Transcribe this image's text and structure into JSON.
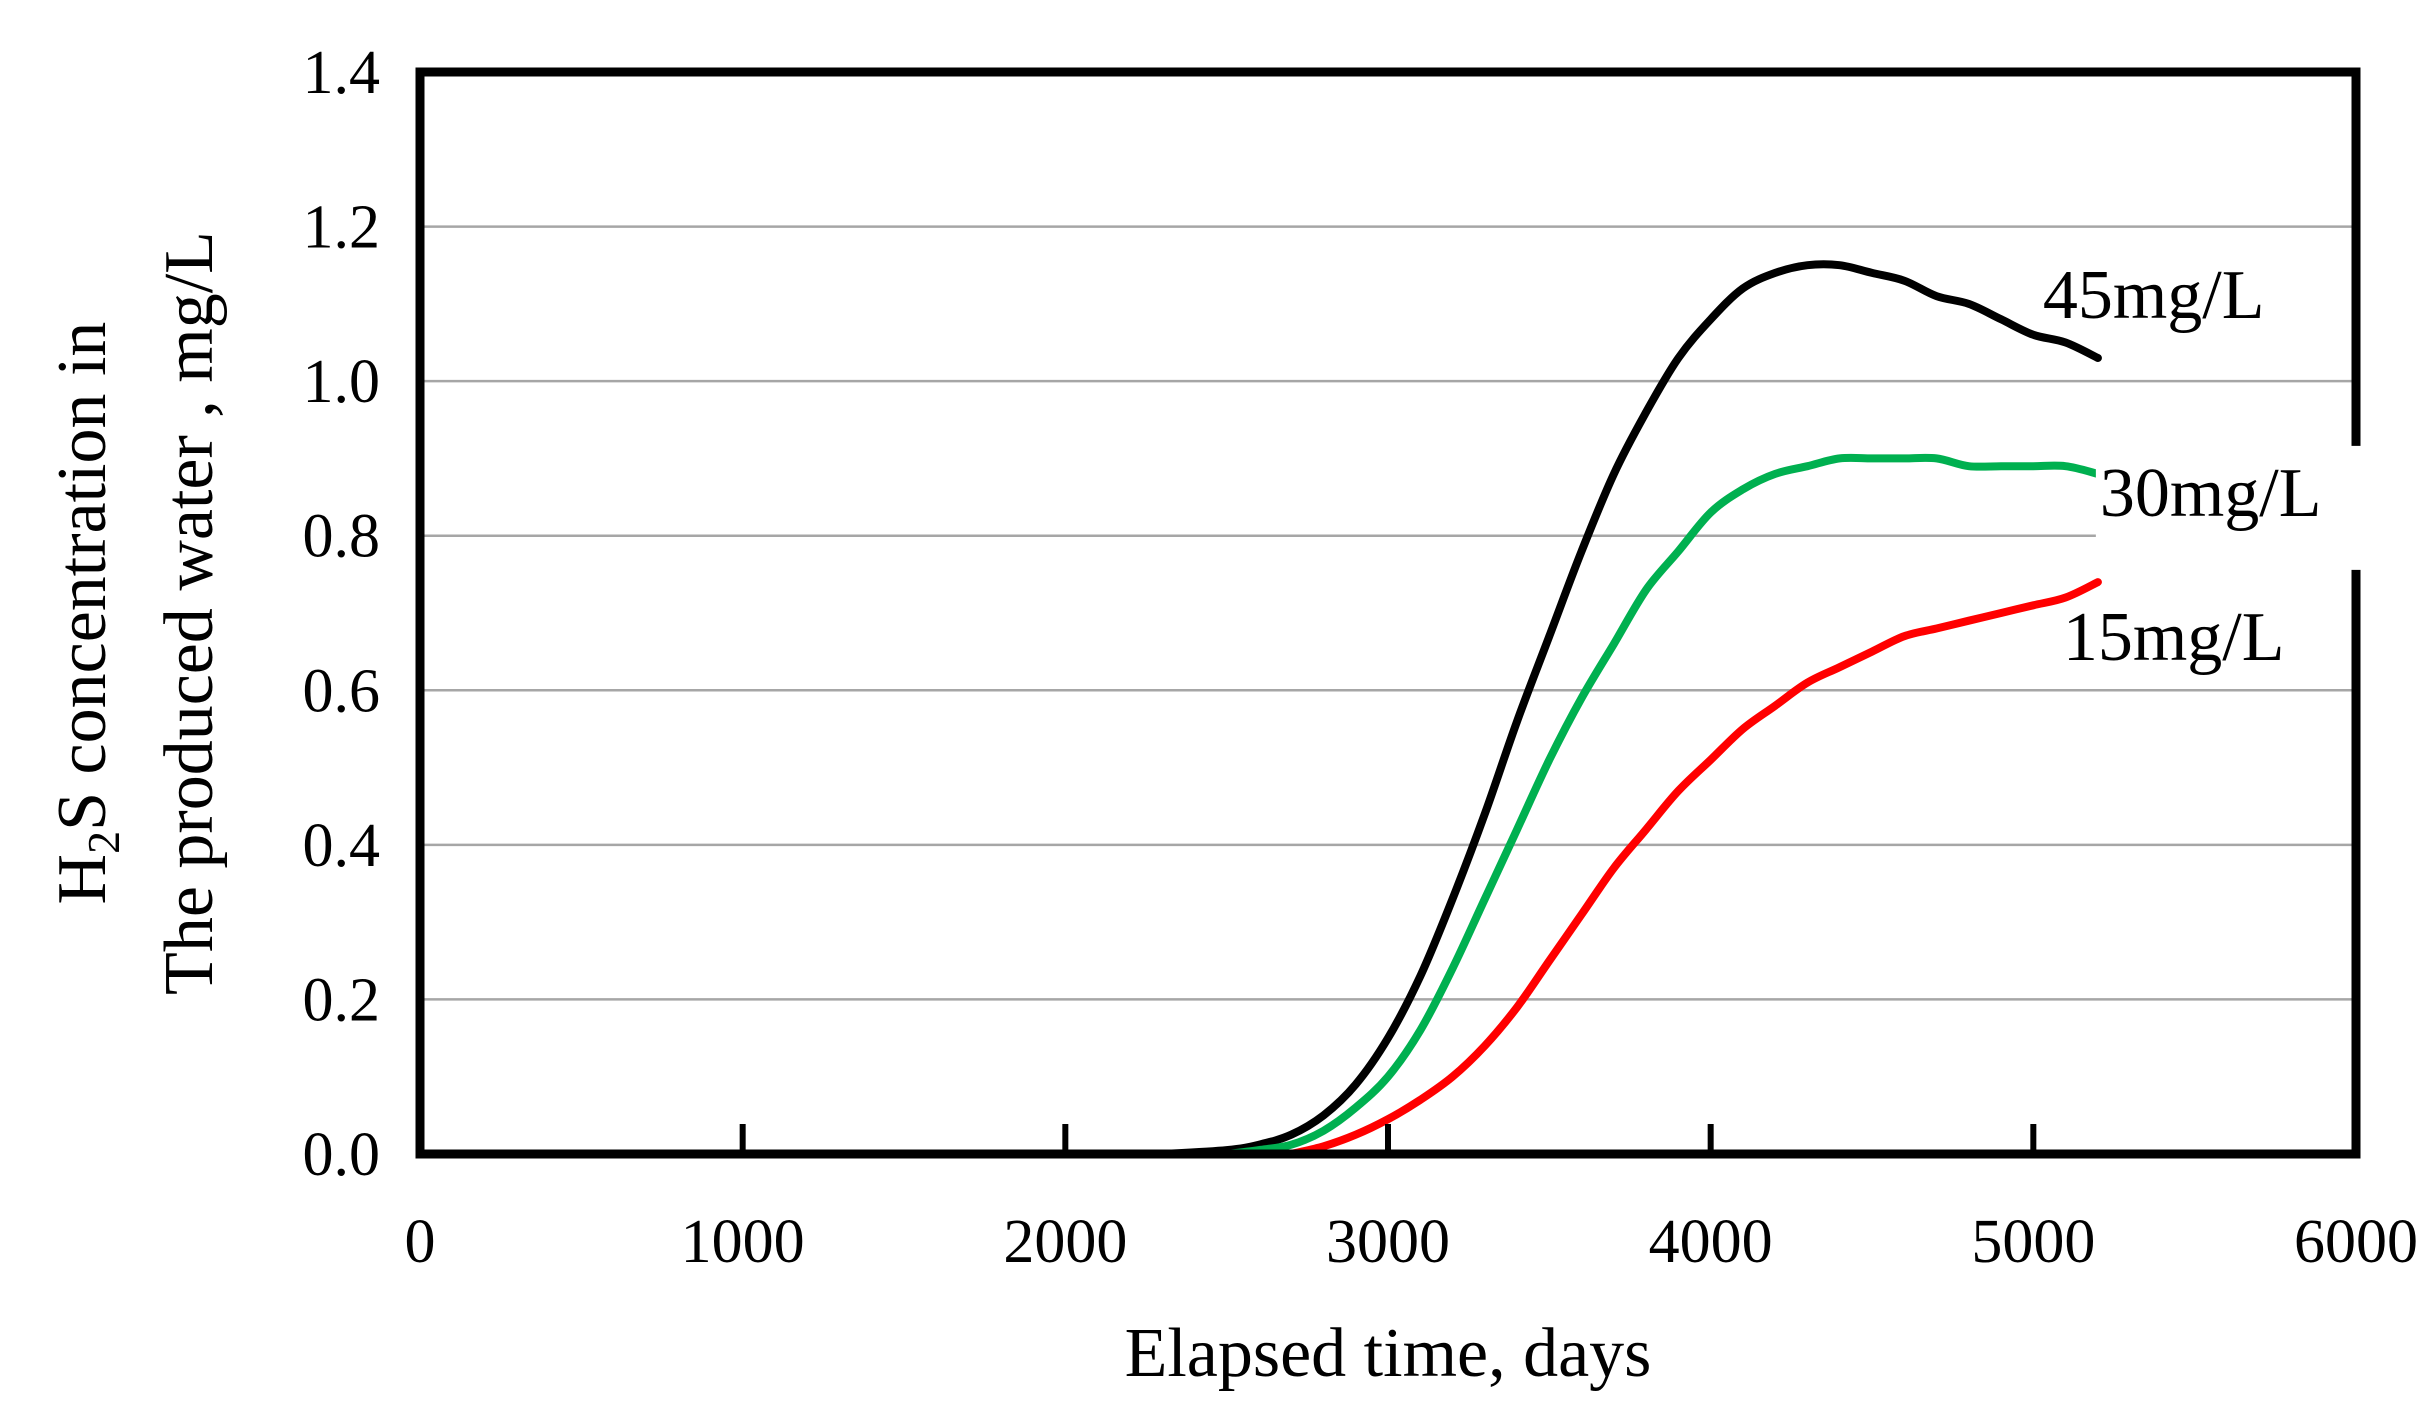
{
  "chart_data": {
    "type": "line",
    "title": "",
    "xlabel": "Elapsed time, days",
    "ylabel_line1": "H",
    "ylabel_sub": "2",
    "ylabel_line1_rest": "S concentration in",
    "ylabel_line2": "The produced water , mg/L",
    "xlim": [
      0,
      6000
    ],
    "ylim": [
      0,
      1.4
    ],
    "x_ticks": [
      0,
      1000,
      2000,
      3000,
      4000,
      5000,
      6000
    ],
    "x_tick_labels": [
      "0",
      "1000",
      "2000",
      "3000",
      "4000",
      "5000",
      "6000"
    ],
    "y_ticks": [
      0,
      0.2,
      0.4,
      0.6,
      0.8,
      1.0,
      1.2,
      1.4
    ],
    "y_tick_labels": [
      "0.0",
      "0.2",
      "0.4",
      "0.6",
      "0.8",
      "1.0",
      "1.2",
      "1.4"
    ],
    "grid": "horizontal",
    "series": [
      {
        "name": "45mg/L",
        "label": "45mg/L",
        "color": "#000000",
        "x": [
          2300,
          2500,
          2600,
          2700,
          2800,
          2900,
          3000,
          3100,
          3200,
          3300,
          3400,
          3500,
          3600,
          3700,
          3800,
          3900,
          4000,
          4100,
          4200,
          4300,
          4400,
          4500,
          4600,
          4700,
          4800,
          4900,
          5000,
          5100,
          5200
        ],
        "y": [
          0.0,
          0.005,
          0.012,
          0.025,
          0.05,
          0.09,
          0.15,
          0.23,
          0.33,
          0.44,
          0.56,
          0.67,
          0.78,
          0.88,
          0.96,
          1.03,
          1.08,
          1.12,
          1.14,
          1.15,
          1.15,
          1.14,
          1.13,
          1.11,
          1.1,
          1.08,
          1.06,
          1.05,
          1.03
        ]
      },
      {
        "name": "30mg/L",
        "label": "30mg/L",
        "color": "#00b050",
        "x": [
          2500,
          2600,
          2700,
          2800,
          2900,
          3000,
          3100,
          3200,
          3300,
          3400,
          3500,
          3600,
          3700,
          3800,
          3900,
          4000,
          4100,
          4200,
          4300,
          4400,
          4500,
          4600,
          4700,
          4800,
          4900,
          5000,
          5100,
          5200
        ],
        "y": [
          0.0,
          0.005,
          0.012,
          0.03,
          0.06,
          0.1,
          0.16,
          0.24,
          0.33,
          0.42,
          0.51,
          0.59,
          0.66,
          0.73,
          0.78,
          0.83,
          0.86,
          0.88,
          0.89,
          0.9,
          0.9,
          0.9,
          0.9,
          0.89,
          0.89,
          0.89,
          0.89,
          0.88
        ]
      },
      {
        "name": "15mg/L",
        "label": "15mg/L",
        "color": "#ff0000",
        "x": [
          2700,
          2800,
          2900,
          3000,
          3100,
          3200,
          3300,
          3400,
          3500,
          3600,
          3700,
          3800,
          3900,
          4000,
          4100,
          4200,
          4300,
          4400,
          4500,
          4600,
          4700,
          4800,
          4900,
          5000,
          5100,
          5200
        ],
        "y": [
          0.0,
          0.01,
          0.025,
          0.045,
          0.07,
          0.1,
          0.14,
          0.19,
          0.25,
          0.31,
          0.37,
          0.42,
          0.47,
          0.51,
          0.55,
          0.58,
          0.61,
          0.63,
          0.65,
          0.67,
          0.68,
          0.69,
          0.7,
          0.71,
          0.72,
          0.74
        ]
      }
    ]
  }
}
